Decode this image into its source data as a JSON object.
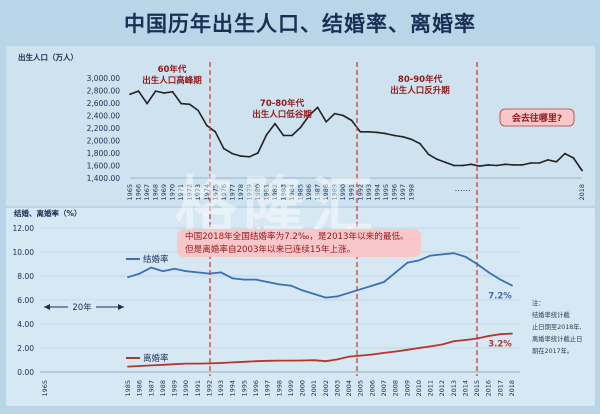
{
  "title": "中国历年出生人口、结婚率、离婚率",
  "watermark": {
    "main": "格隆汇",
    "sub": "gelonghui.com"
  },
  "chart_data": [
    {
      "type": "line",
      "name": "births",
      "ylabel": "出生人口（万人）",
      "ylim": [
        1400,
        3000
      ],
      "yticks": [
        "1,400.00",
        "1,600.00",
        "1,800.00",
        "2,000.00",
        "2,200.00",
        "2,400.00",
        "2,600.00",
        "2,800.00",
        "3,000.00"
      ],
      "xticks": [
        "1965",
        "1966",
        "1967",
        "1968",
        "1969",
        "1970",
        "1971",
        "1972",
        "1973",
        "1974",
        "1975",
        "1976",
        "1977",
        "1978",
        "1979",
        "1980",
        "1981",
        "1982",
        "1983",
        "1984",
        "1985",
        "1986",
        "1987",
        "1988",
        "1989",
        "1990",
        "1991",
        "1992",
        "1993",
        "1994",
        "1995",
        "1996",
        "1997",
        "1998",
        "……",
        "2018"
      ],
      "x": [
        1965,
        1966,
        1967,
        1968,
        1969,
        1970,
        1971,
        1972,
        1973,
        1974,
        1975,
        1976,
        1977,
        1978,
        1979,
        1980,
        1981,
        1982,
        1983,
        1984,
        1985,
        1986,
        1987,
        1988,
        1989,
        1990,
        1991,
        1992,
        1993,
        1994,
        1995,
        1996,
        1997,
        1998,
        1999,
        2000,
        2001,
        2002,
        2003,
        2004,
        2005,
        2006,
        2007,
        2008,
        2009,
        2010,
        2011,
        2012,
        2013,
        2014,
        2015,
        2016,
        2017,
        2018
      ],
      "values": [
        2740,
        2790,
        2590,
        2790,
        2760,
        2780,
        2590,
        2580,
        2480,
        2240,
        2140,
        1870,
        1790,
        1750,
        1740,
        1800,
        2090,
        2270,
        2080,
        2080,
        2210,
        2400,
        2530,
        2300,
        2430,
        2400,
        2320,
        2140,
        2140,
        2130,
        2110,
        2080,
        2060,
        2020,
        1950,
        1780,
        1700,
        1650,
        1600,
        1600,
        1620,
        1590,
        1610,
        1600,
        1620,
        1610,
        1610,
        1640,
        1640,
        1690,
        1660,
        1790,
        1720,
        1520
      ],
      "annotations": [
        "60年代\n出生人口高峰期",
        "70-80年代\n出生人口低谷期",
        "80-90年代\n出生人口反升期",
        "会去往哪里?"
      ]
    },
    {
      "type": "line",
      "name": "marriage-divorce",
      "ylabel": "结婚、离婚率（%）",
      "ylim": [
        0,
        12
      ],
      "yticks": [
        "0.00",
        "2.00",
        "4.00",
        "6.00",
        "8.00",
        "10.00",
        "12.00"
      ],
      "xticks": [
        "1965",
        "1985",
        "1986",
        "1987",
        "1988",
        "1989",
        "1990",
        "1991",
        "1992",
        "1993",
        "1994",
        "1995",
        "1996",
        "1997",
        "1998",
        "1999",
        "2000",
        "2001",
        "2002",
        "2003",
        "2004",
        "2005",
        "2006",
        "2007",
        "2008",
        "2009",
        "2010",
        "2011",
        "2012",
        "2013",
        "2014",
        "2015",
        "2016",
        "2017",
        "2018"
      ],
      "x": [
        1985,
        1986,
        1987,
        1988,
        1989,
        1990,
        1991,
        1992,
        1993,
        1994,
        1995,
        1996,
        1997,
        1998,
        1999,
        2000,
        2001,
        2002,
        2003,
        2004,
        2005,
        2006,
        2007,
        2008,
        2009,
        2010,
        2011,
        2012,
        2013,
        2014,
        2015,
        2016,
        2017,
        2018
      ],
      "series": [
        {
          "name": "结婚率",
          "color": "#3b6fb6",
          "end_label": "7.2%",
          "values": [
            7.9,
            8.2,
            8.7,
            8.4,
            8.6,
            8.4,
            8.3,
            8.2,
            8.3,
            7.8,
            7.7,
            7.7,
            7.5,
            7.3,
            7.2,
            6.8,
            6.5,
            6.2,
            6.3,
            6.6,
            6.9,
            7.2,
            7.5,
            8.3,
            9.1,
            9.3,
            9.7,
            9.8,
            9.9,
            9.6,
            9.0,
            8.3,
            7.7,
            7.2
          ]
        },
        {
          "name": "离婚率",
          "color": "#b4372e",
          "end_label": "3.2%",
          "values": [
            0.45,
            0.5,
            0.55,
            0.6,
            0.65,
            0.7,
            0.7,
            0.72,
            0.75,
            0.8,
            0.85,
            0.9,
            0.93,
            0.95,
            0.95,
            0.96,
            0.98,
            0.9,
            1.05,
            1.28,
            1.37,
            1.46,
            1.59,
            1.71,
            1.85,
            2.0,
            2.13,
            2.29,
            2.57,
            2.67,
            2.79,
            3.0,
            3.15,
            3.2
          ]
        }
      ],
      "gap_label": "20年",
      "annotation": [
        "中国2018年全国结婚率为7.2‰，是2013年以来的最低。",
        "但是离婚率自2003年以来已连续15年上涨。"
      ],
      "side_note": [
        "注：",
        "结婚率统计截",
        "止日期至2018年,",
        "离婚率统计截止日",
        "期在2017年。"
      ]
    }
  ],
  "colors": {
    "marriage": "#3b6fb6",
    "divorce": "#b4372e",
    "births": "#222222",
    "period_line": "#c0392b",
    "annotation": "#8e1b1b"
  }
}
